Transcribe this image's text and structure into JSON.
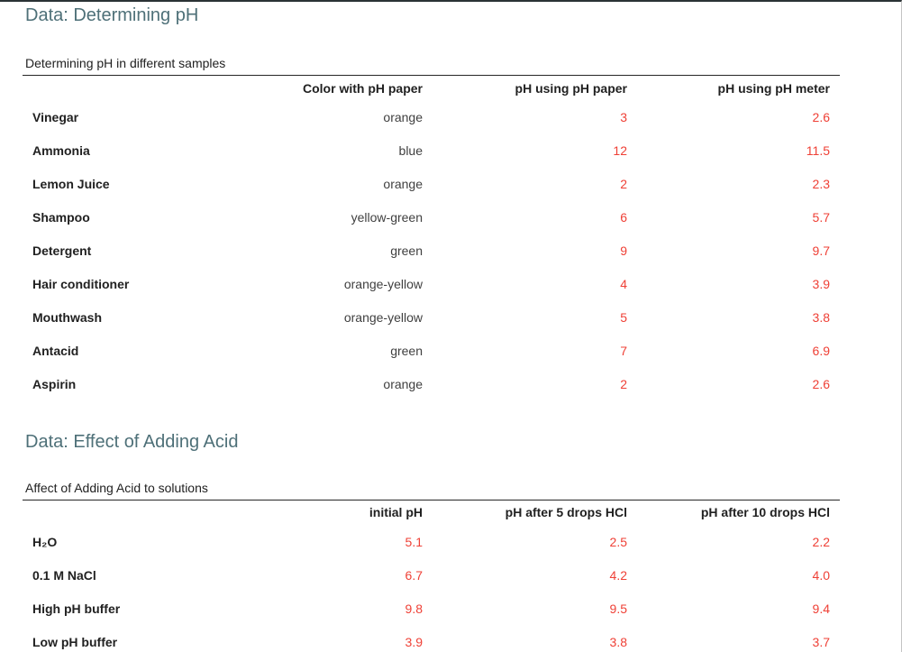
{
  "theme": {
    "heading_color": "#4e7078",
    "value_color": "#ef4036",
    "label_color": "#212121",
    "text_value_color": "#3f3f3f",
    "rule_color": "#262626",
    "top_bar_color": "#2a3235"
  },
  "section1": {
    "heading": "Data: Determining pH",
    "caption": "Determining pH in different samples",
    "headers": {
      "col2": "Color with pH paper",
      "col3": "pH using pH paper",
      "col4": "pH using pH meter"
    },
    "rows": [
      {
        "label": "Vinegar",
        "c2": "orange",
        "c3": "3",
        "c4": "2.6"
      },
      {
        "label": "Ammonia",
        "c2": "blue",
        "c3": "12",
        "c4": "11.5"
      },
      {
        "label": "Lemon Juice",
        "c2": "orange",
        "c3": "2",
        "c4": "2.3"
      },
      {
        "label": "Shampoo",
        "c2": "yellow-green",
        "c3": "6",
        "c4": "5.7"
      },
      {
        "label": "Detergent",
        "c2": "green",
        "c3": "9",
        "c4": "9.7"
      },
      {
        "label": "Hair conditioner",
        "c2": "orange-yellow",
        "c3": "4",
        "c4": "3.9"
      },
      {
        "label": "Mouthwash",
        "c2": "orange-yellow",
        "c3": "5",
        "c4": "3.8"
      },
      {
        "label": "Antacid",
        "c2": "green",
        "c3": "7",
        "c4": "6.9"
      },
      {
        "label": "Aspirin",
        "c2": "orange",
        "c3": "2",
        "c4": "2.6"
      }
    ]
  },
  "section2": {
    "heading": "Data: Effect of Adding Acid",
    "caption": "Affect of Adding Acid to solutions",
    "headers": {
      "col2": "initial pH",
      "col3": "pH after 5 drops HCl",
      "col4": "pH after 10 drops HCl"
    },
    "rows": [
      {
        "label": "H₂O",
        "c2": "5.1",
        "c3": "2.5",
        "c4": "2.2"
      },
      {
        "label": "0.1 M NaCl",
        "c2": "6.7",
        "c3": "4.2",
        "c4": "4.0"
      },
      {
        "label": "High pH buffer",
        "c2": "9.8",
        "c3": "9.5",
        "c4": "9.4"
      },
      {
        "label": "Low pH buffer",
        "c2": "3.9",
        "c3": "3.8",
        "c4": "3.7"
      }
    ]
  }
}
